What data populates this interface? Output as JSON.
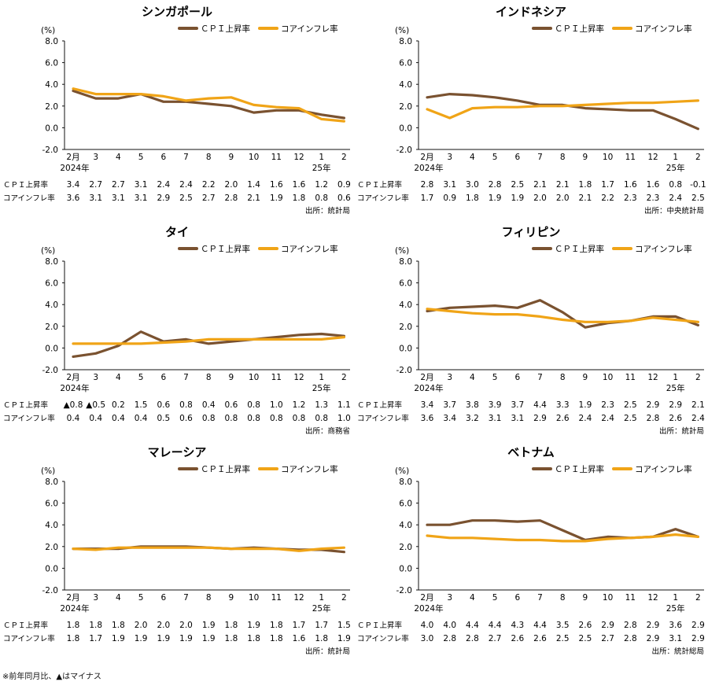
{
  "colors": {
    "cpi": "#7a5230",
    "core": "#f0a417",
    "axis": "#111111"
  },
  "legend": {
    "cpi": "ＣＰＩ上昇率",
    "core": "コアインフレ率"
  },
  "row_labels": {
    "cpi": "ＣＰＩ上昇率",
    "core": "コアインフレ率"
  },
  "footnote": "※前年同月比、▲はマイナス",
  "chart_data": [
    {
      "type": "line",
      "title": "シンガポール",
      "ylabel": "(%)",
      "ylim": [
        -2,
        8
      ],
      "yticks": [
        "8.0",
        "6.0",
        "4.0",
        "2.0",
        "0.0",
        "-2.0"
      ],
      "categories": [
        "2月",
        "3",
        "4",
        "5",
        "6",
        "7",
        "8",
        "9",
        "10",
        "11",
        "12",
        "1",
        "2"
      ],
      "year_labels": {
        "first": "2024年",
        "second": "25年"
      },
      "series": [
        {
          "name": "ＣＰＩ上昇率",
          "values": [
            3.4,
            2.7,
            2.7,
            3.1,
            2.4,
            2.4,
            2.2,
            2.0,
            1.4,
            1.6,
            1.6,
            1.2,
            0.9
          ],
          "labels": [
            "3.4",
            "2.7",
            "2.7",
            "3.1",
            "2.4",
            "2.4",
            "2.2",
            "2.0",
            "1.4",
            "1.6",
            "1.6",
            "1.2",
            "0.9"
          ]
        },
        {
          "name": "コアインフレ率",
          "values": [
            3.6,
            3.1,
            3.1,
            3.1,
            2.9,
            2.5,
            2.7,
            2.8,
            2.1,
            1.9,
            1.8,
            0.8,
            0.6
          ],
          "labels": [
            "3.6",
            "3.1",
            "3.1",
            "3.1",
            "2.9",
            "2.5",
            "2.7",
            "2.8",
            "2.1",
            "1.9",
            "1.8",
            "0.8",
            "0.6"
          ]
        }
      ],
      "source": "出所：統計局"
    },
    {
      "type": "line",
      "title": "インドネシア",
      "ylabel": "(%)",
      "ylim": [
        -2,
        8
      ],
      "yticks": [
        "8.0",
        "6.0",
        "4.0",
        "2.0",
        "0.0",
        "-2.0"
      ],
      "categories": [
        "2月",
        "3",
        "4",
        "5",
        "6",
        "7",
        "8",
        "9",
        "10",
        "11",
        "12",
        "1",
        "2"
      ],
      "year_labels": {
        "first": "2024年",
        "second": "25年"
      },
      "series": [
        {
          "name": "ＣＰＩ上昇率",
          "values": [
            2.8,
            3.1,
            3.0,
            2.8,
            2.5,
            2.1,
            2.1,
            1.8,
            1.7,
            1.6,
            1.6,
            0.8,
            -0.1
          ],
          "labels": [
            "2.8",
            "3.1",
            "3.0",
            "2.8",
            "2.5",
            "2.1",
            "2.1",
            "1.8",
            "1.7",
            "1.6",
            "1.6",
            "0.8",
            "-0.1"
          ]
        },
        {
          "name": "コアインフレ率",
          "values": [
            1.7,
            0.9,
            1.8,
            1.9,
            1.9,
            2.0,
            2.0,
            2.1,
            2.2,
            2.3,
            2.3,
            2.4,
            2.5
          ],
          "labels": [
            "1.7",
            "0.9",
            "1.8",
            "1.9",
            "1.9",
            "2.0",
            "2.0",
            "2.1",
            "2.2",
            "2.3",
            "2.3",
            "2.4",
            "2.5"
          ]
        }
      ],
      "source": "出所：中央統計局"
    },
    {
      "type": "line",
      "title": "タイ",
      "ylabel": "(%)",
      "ylim": [
        -2,
        8
      ],
      "yticks": [
        "8.0",
        "6.0",
        "4.0",
        "2.0",
        "0.0",
        "-2.0"
      ],
      "categories": [
        "2月",
        "3",
        "4",
        "5",
        "6",
        "7",
        "8",
        "9",
        "10",
        "11",
        "12",
        "1",
        "2"
      ],
      "year_labels": {
        "first": "2024年",
        "second": "25年"
      },
      "series": [
        {
          "name": "ＣＰＩ上昇率",
          "values": [
            -0.8,
            -0.5,
            0.2,
            1.5,
            0.6,
            0.8,
            0.4,
            0.6,
            0.8,
            1.0,
            1.2,
            1.3,
            1.1
          ],
          "labels": [
            "▲0.8",
            "▲0.5",
            "0.2",
            "1.5",
            "0.6",
            "0.8",
            "0.4",
            "0.6",
            "0.8",
            "1.0",
            "1.2",
            "1.3",
            "1.1"
          ]
        },
        {
          "name": "コアインフレ率",
          "values": [
            0.4,
            0.4,
            0.4,
            0.4,
            0.5,
            0.6,
            0.8,
            0.8,
            0.8,
            0.8,
            0.8,
            0.8,
            1.0
          ],
          "labels": [
            "0.4",
            "0.4",
            "0.4",
            "0.4",
            "0.5",
            "0.6",
            "0.8",
            "0.8",
            "0.8",
            "0.8",
            "0.8",
            "0.8",
            "1.0"
          ]
        }
      ],
      "source": "出所：商務省"
    },
    {
      "type": "line",
      "title": "フィリピン",
      "ylabel": "(%)",
      "ylim": [
        -2,
        8
      ],
      "yticks": [
        "8.0",
        "6.0",
        "4.0",
        "2.0",
        "0.0",
        "-2.0"
      ],
      "categories": [
        "2月",
        "3",
        "4",
        "5",
        "6",
        "7",
        "8",
        "9",
        "10",
        "11",
        "12",
        "1",
        "2"
      ],
      "year_labels": {
        "first": "2024年",
        "second": "25年"
      },
      "series": [
        {
          "name": "ＣＰＩ上昇率",
          "values": [
            3.4,
            3.7,
            3.8,
            3.9,
            3.7,
            4.4,
            3.3,
            1.9,
            2.3,
            2.5,
            2.9,
            2.9,
            2.1
          ],
          "labels": [
            "3.4",
            "3.7",
            "3.8",
            "3.9",
            "3.7",
            "4.4",
            "3.3",
            "1.9",
            "2.3",
            "2.5",
            "2.9",
            "2.9",
            "2.1"
          ]
        },
        {
          "name": "コアインフレ率",
          "values": [
            3.6,
            3.4,
            3.2,
            3.1,
            3.1,
            2.9,
            2.6,
            2.4,
            2.4,
            2.5,
            2.8,
            2.6,
            2.4
          ],
          "labels": [
            "3.6",
            "3.4",
            "3.2",
            "3.1",
            "3.1",
            "2.9",
            "2.6",
            "2.4",
            "2.4",
            "2.5",
            "2.8",
            "2.6",
            "2.4"
          ]
        }
      ],
      "source": "出所：統計局"
    },
    {
      "type": "line",
      "title": "マレーシア",
      "ylabel": "(%)",
      "ylim": [
        -2,
        8
      ],
      "yticks": [
        "8.0",
        "6.0",
        "4.0",
        "2.0",
        "0.0",
        "-2.0"
      ],
      "categories": [
        "2月",
        "3",
        "4",
        "5",
        "6",
        "7",
        "8",
        "9",
        "10",
        "11",
        "12",
        "1",
        "2"
      ],
      "year_labels": {
        "first": "2024年",
        "second": "25年"
      },
      "series": [
        {
          "name": "ＣＰＩ上昇率",
          "values": [
            1.8,
            1.8,
            1.8,
            2.0,
            2.0,
            2.0,
            1.9,
            1.8,
            1.9,
            1.8,
            1.7,
            1.7,
            1.5
          ],
          "labels": [
            "1.8",
            "1.8",
            "1.8",
            "2.0",
            "2.0",
            "2.0",
            "1.9",
            "1.8",
            "1.9",
            "1.8",
            "1.7",
            "1.7",
            "1.5"
          ]
        },
        {
          "name": "コアインフレ率",
          "values": [
            1.8,
            1.7,
            1.9,
            1.9,
            1.9,
            1.9,
            1.9,
            1.8,
            1.8,
            1.8,
            1.6,
            1.8,
            1.9
          ],
          "labels": [
            "1.8",
            "1.7",
            "1.9",
            "1.9",
            "1.9",
            "1.9",
            "1.9",
            "1.8",
            "1.8",
            "1.8",
            "1.6",
            "1.8",
            "1.9"
          ]
        }
      ],
      "source": "出所：統計局"
    },
    {
      "type": "line",
      "title": "ベトナム",
      "ylabel": "(%)",
      "ylim": [
        -2,
        8
      ],
      "yticks": [
        "8.0",
        "6.0",
        "4.0",
        "2.0",
        "0.0",
        "-2.0"
      ],
      "categories": [
        "2月",
        "3",
        "4",
        "5",
        "6",
        "7",
        "8",
        "9",
        "10",
        "11",
        "12",
        "1",
        "2"
      ],
      "year_labels": {
        "first": "2024年",
        "second": "25年"
      },
      "series": [
        {
          "name": "ＣＰＩ上昇率",
          "values": [
            4.0,
            4.0,
            4.4,
            4.4,
            4.3,
            4.4,
            3.5,
            2.6,
            2.9,
            2.8,
            2.9,
            3.6,
            2.9
          ],
          "labels": [
            "4.0",
            "4.0",
            "4.4",
            "4.4",
            "4.3",
            "4.4",
            "3.5",
            "2.6",
            "2.9",
            "2.8",
            "2.9",
            "3.6",
            "2.9"
          ]
        },
        {
          "name": "コアインフレ率",
          "values": [
            3.0,
            2.8,
            2.8,
            2.7,
            2.6,
            2.6,
            2.5,
            2.5,
            2.7,
            2.8,
            2.9,
            3.1,
            2.9
          ],
          "labels": [
            "3.0",
            "2.8",
            "2.8",
            "2.7",
            "2.6",
            "2.6",
            "2.5",
            "2.5",
            "2.7",
            "2.8",
            "2.9",
            "3.1",
            "2.9"
          ]
        }
      ],
      "source": "出所：統計総局"
    }
  ]
}
